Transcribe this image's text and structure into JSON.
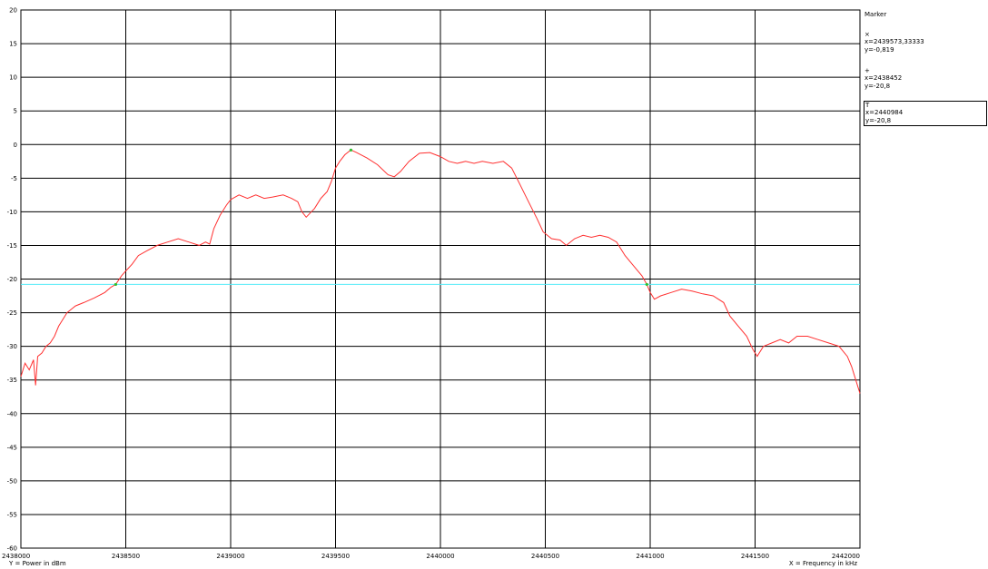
{
  "chart_data": {
    "type": "line",
    "title": "",
    "xlabel": "X = Frequency in kHz",
    "ylabel": "Y = Power in dBm",
    "xlim": [
      2438000,
      2442000
    ],
    "ylim": [
      -60,
      20
    ],
    "x_ticks": [
      2438000,
      2438500,
      2439000,
      2439500,
      2440000,
      2440500,
      2441000,
      2441500,
      2442000
    ],
    "y_ticks": [
      20,
      15,
      10,
      5,
      0,
      -5,
      -10,
      -15,
      -20,
      -25,
      -30,
      -35,
      -40,
      -45,
      -50,
      -55,
      -60
    ],
    "grid": true,
    "series": [
      {
        "color": "#ff3030",
        "points": [
          [
            2438000,
            -34.5
          ],
          [
            2438020,
            -32.5
          ],
          [
            2438040,
            -33.5
          ],
          [
            2438060,
            -32.0
          ],
          [
            2438070,
            -35.8
          ],
          [
            2438080,
            -31.5
          ],
          [
            2438100,
            -31.0
          ],
          [
            2438120,
            -30.0
          ],
          [
            2438140,
            -29.5
          ],
          [
            2438160,
            -28.5
          ],
          [
            2438180,
            -27.0
          ],
          [
            2438200,
            -26.0
          ],
          [
            2438220,
            -25.0
          ],
          [
            2438240,
            -24.5
          ],
          [
            2438260,
            -24.0
          ],
          [
            2438300,
            -23.5
          ],
          [
            2438350,
            -22.8
          ],
          [
            2438400,
            -22.0
          ],
          [
            2438430,
            -21.2
          ],
          [
            2438452,
            -20.8
          ],
          [
            2438480,
            -19.5
          ],
          [
            2438500,
            -18.8
          ],
          [
            2438530,
            -17.8
          ],
          [
            2438560,
            -16.5
          ],
          [
            2438600,
            -15.8
          ],
          [
            2438650,
            -15.0
          ],
          [
            2438700,
            -14.5
          ],
          [
            2438750,
            -14.0
          ],
          [
            2438800,
            -14.5
          ],
          [
            2438850,
            -15.0
          ],
          [
            2438880,
            -14.5
          ],
          [
            2438900,
            -14.8
          ],
          [
            2438920,
            -12.5
          ],
          [
            2438950,
            -10.5
          ],
          [
            2438980,
            -9.0
          ],
          [
            2439000,
            -8.2
          ],
          [
            2439040,
            -7.5
          ],
          [
            2439080,
            -8.0
          ],
          [
            2439120,
            -7.5
          ],
          [
            2439160,
            -8.0
          ],
          [
            2439200,
            -7.8
          ],
          [
            2439250,
            -7.5
          ],
          [
            2439290,
            -8.0
          ],
          [
            2439320,
            -8.5
          ],
          [
            2439340,
            -10.0
          ],
          [
            2439360,
            -10.8
          ],
          [
            2439400,
            -9.5
          ],
          [
            2439430,
            -8.0
          ],
          [
            2439460,
            -7.0
          ],
          [
            2439480,
            -5.5
          ],
          [
            2439500,
            -3.5
          ],
          [
            2439520,
            -2.5
          ],
          [
            2439545,
            -1.5
          ],
          [
            2439573,
            -0.8
          ],
          [
            2439600,
            -1.2
          ],
          [
            2439650,
            -2.0
          ],
          [
            2439700,
            -3.0
          ],
          [
            2439750,
            -4.5
          ],
          [
            2439780,
            -4.8
          ],
          [
            2439810,
            -4.0
          ],
          [
            2439850,
            -2.5
          ],
          [
            2439900,
            -1.3
          ],
          [
            2439950,
            -1.2
          ],
          [
            2440000,
            -1.8
          ],
          [
            2440040,
            -2.5
          ],
          [
            2440080,
            -2.8
          ],
          [
            2440120,
            -2.5
          ],
          [
            2440160,
            -2.8
          ],
          [
            2440200,
            -2.5
          ],
          [
            2440250,
            -2.8
          ],
          [
            2440300,
            -2.5
          ],
          [
            2440340,
            -3.5
          ],
          [
            2440380,
            -6.0
          ],
          [
            2440420,
            -8.5
          ],
          [
            2440460,
            -11.0
          ],
          [
            2440490,
            -13.0
          ],
          [
            2440530,
            -14.0
          ],
          [
            2440570,
            -14.2
          ],
          [
            2440600,
            -15.0
          ],
          [
            2440640,
            -14.0
          ],
          [
            2440680,
            -13.5
          ],
          [
            2440720,
            -13.8
          ],
          [
            2440760,
            -13.5
          ],
          [
            2440800,
            -13.8
          ],
          [
            2440840,
            -14.5
          ],
          [
            2440880,
            -16.5
          ],
          [
            2440920,
            -18.0
          ],
          [
            2440960,
            -19.5
          ],
          [
            2440984,
            -20.8
          ],
          [
            2441000,
            -22.0
          ],
          [
            2441020,
            -23.0
          ],
          [
            2441050,
            -22.5
          ],
          [
            2441100,
            -22.0
          ],
          [
            2441150,
            -21.5
          ],
          [
            2441200,
            -21.8
          ],
          [
            2441250,
            -22.2
          ],
          [
            2441300,
            -22.5
          ],
          [
            2441350,
            -23.5
          ],
          [
            2441380,
            -25.5
          ],
          [
            2441420,
            -27.0
          ],
          [
            2441460,
            -28.5
          ],
          [
            2441490,
            -30.5
          ],
          [
            2441510,
            -31.5
          ],
          [
            2441540,
            -30.0
          ],
          [
            2441580,
            -29.5
          ],
          [
            2441620,
            -29.0
          ],
          [
            2441660,
            -29.5
          ],
          [
            2441700,
            -28.5
          ],
          [
            2441750,
            -28.5
          ],
          [
            2441800,
            -29.0
          ],
          [
            2441850,
            -29.5
          ],
          [
            2441900,
            -30.0
          ],
          [
            2441940,
            -31.5
          ],
          [
            2441960,
            -33.0
          ],
          [
            2441980,
            -35.0
          ],
          [
            2442000,
            -37.0
          ]
        ]
      },
      {
        "color": "#58ecf8",
        "points": [
          [
            2438000,
            -20.8
          ],
          [
            2442000,
            -20.8
          ]
        ]
      }
    ],
    "marker_points": [
      {
        "x": 2439573.33333,
        "y": -0.819
      },
      {
        "x": 2438452,
        "y": -20.8
      },
      {
        "x": 2440984,
        "y": -20.8
      }
    ]
  },
  "marker_panel": {
    "title": "Marker",
    "markers": [
      {
        "symbol": "×",
        "x_text": "x=2439573,33333",
        "y_text": "y=-0,819",
        "selected": false
      },
      {
        "symbol": "+",
        "x_text": "x=2438452",
        "y_text": "y=-20,8",
        "selected": false
      },
      {
        "symbol": "T",
        "x_text": "x=2440984",
        "y_text": "y=-20,8",
        "selected": true
      }
    ]
  }
}
